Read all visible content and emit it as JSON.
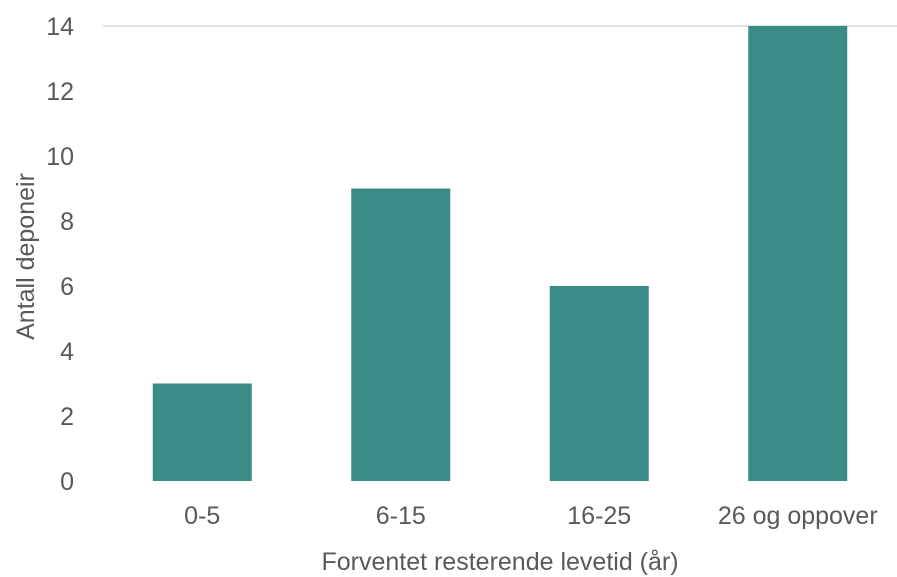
{
  "chart_data": {
    "type": "bar",
    "categories": [
      "0-5",
      "6-15",
      "16-25",
      "26 og oppover"
    ],
    "values": [
      3,
      9,
      6,
      14
    ],
    "title": "",
    "xlabel": "Forventet resterende levetid (år)",
    "ylabel": "Antall deponeir",
    "ylim": [
      0,
      14
    ],
    "yticks": [
      0,
      2,
      4,
      6,
      8,
      10,
      12,
      14
    ],
    "grid": false,
    "bar_color": "#3a8a85",
    "axis_color": "#d9d9d9",
    "text_color": "#595959"
  }
}
